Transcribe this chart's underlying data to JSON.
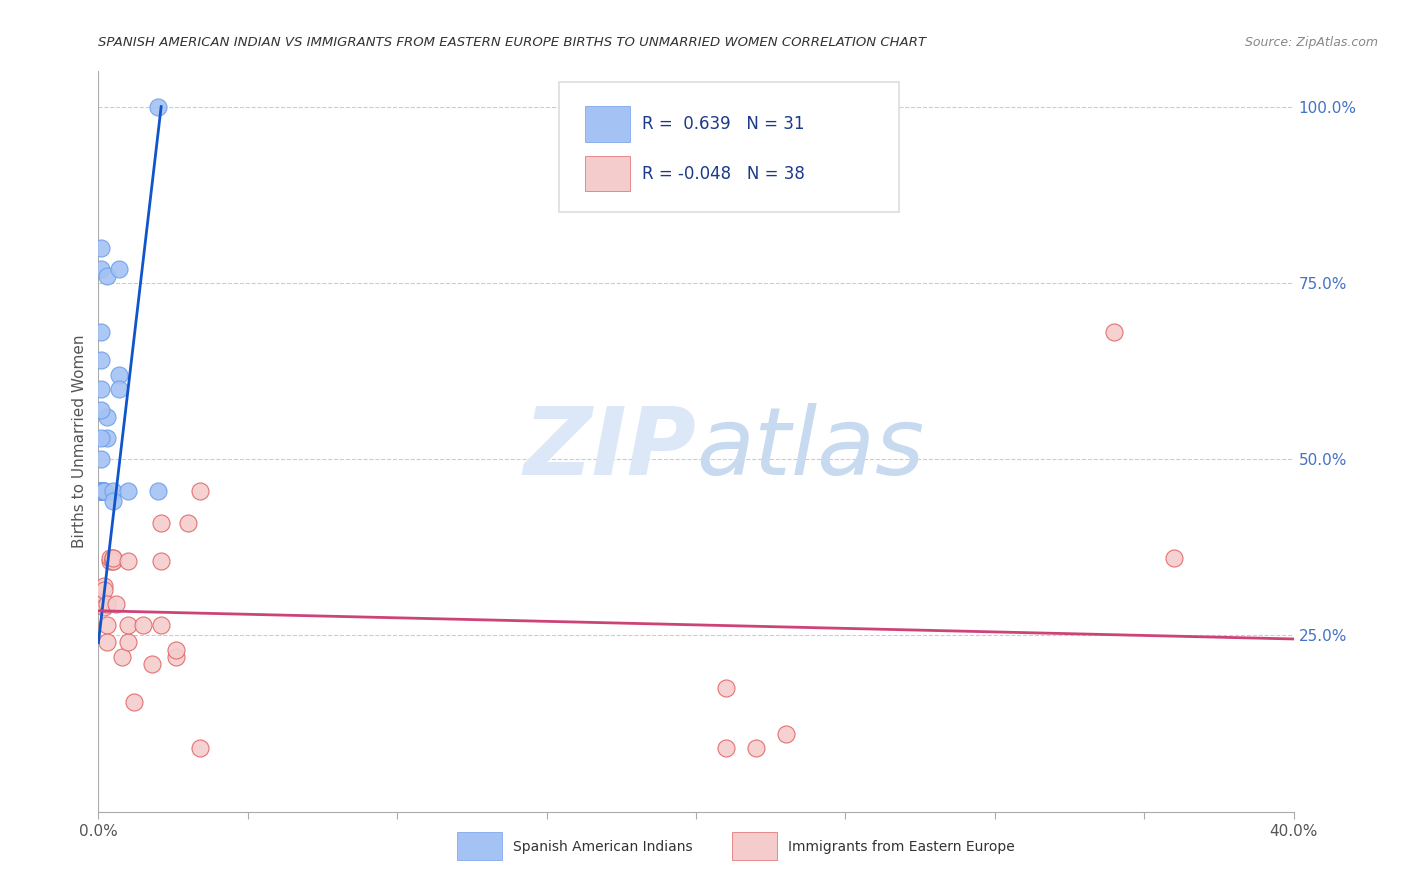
{
  "title": "SPANISH AMERICAN INDIAN VS IMMIGRANTS FROM EASTERN EUROPE BIRTHS TO UNMARRIED WOMEN CORRELATION CHART",
  "source": "Source: ZipAtlas.com",
  "ylabel": "Births to Unmarried Women",
  "blue_color": "#a4c2f4",
  "pink_color": "#f4cccc",
  "blue_edge_color": "#6d9eeb",
  "pink_edge_color": "#e06666",
  "blue_line_color": "#1155cc",
  "pink_line_color": "#cc4477",
  "watermark_zip": "ZIP",
  "watermark_atlas": "atlas",
  "blue_scatter": [
    [
      0.001,
      0.455
    ],
    [
      0.001,
      0.455
    ],
    [
      0.001,
      0.455
    ],
    [
      0.001,
      0.455
    ],
    [
      0.001,
      0.455
    ],
    [
      0.001,
      0.455
    ],
    [
      0.001,
      0.455
    ],
    [
      0.001,
      0.455
    ],
    [
      0.002,
      0.455
    ],
    [
      0.002,
      0.455
    ],
    [
      0.002,
      0.455
    ],
    [
      0.002,
      0.455
    ],
    [
      0.003,
      0.53
    ],
    [
      0.003,
      0.56
    ],
    [
      0.005,
      0.455
    ],
    [
      0.005,
      0.44
    ],
    [
      0.007,
      0.62
    ],
    [
      0.007,
      0.6
    ],
    [
      0.01,
      0.455
    ],
    [
      0.02,
      0.455
    ],
    [
      0.001,
      0.8
    ],
    [
      0.001,
      0.77
    ],
    [
      0.003,
      0.76
    ],
    [
      0.007,
      0.77
    ],
    [
      0.001,
      0.68
    ],
    [
      0.001,
      0.64
    ],
    [
      0.001,
      0.6
    ],
    [
      0.001,
      0.57
    ],
    [
      0.001,
      0.53
    ],
    [
      0.001,
      0.5
    ],
    [
      0.02,
      1.0
    ]
  ],
  "pink_scatter": [
    [
      0.001,
      0.3
    ],
    [
      0.001,
      0.295
    ],
    [
      0.001,
      0.3
    ],
    [
      0.001,
      0.295
    ],
    [
      0.002,
      0.32
    ],
    [
      0.002,
      0.315
    ],
    [
      0.002,
      0.29
    ],
    [
      0.003,
      0.295
    ],
    [
      0.003,
      0.265
    ],
    [
      0.003,
      0.24
    ],
    [
      0.004,
      0.355
    ],
    [
      0.004,
      0.36
    ],
    [
      0.005,
      0.355
    ],
    [
      0.005,
      0.36
    ],
    [
      0.005,
      0.355
    ],
    [
      0.005,
      0.36
    ],
    [
      0.006,
      0.295
    ],
    [
      0.008,
      0.22
    ],
    [
      0.01,
      0.355
    ],
    [
      0.01,
      0.24
    ],
    [
      0.01,
      0.265
    ],
    [
      0.012,
      0.155
    ],
    [
      0.015,
      0.265
    ],
    [
      0.018,
      0.21
    ],
    [
      0.021,
      0.355
    ],
    [
      0.021,
      0.265
    ],
    [
      0.021,
      0.41
    ],
    [
      0.026,
      0.22
    ],
    [
      0.026,
      0.23
    ],
    [
      0.03,
      0.41
    ],
    [
      0.034,
      0.09
    ],
    [
      0.034,
      0.455
    ],
    [
      0.21,
      0.09
    ],
    [
      0.22,
      0.09
    ],
    [
      0.21,
      0.175
    ],
    [
      0.23,
      0.11
    ],
    [
      0.34,
      0.68
    ],
    [
      0.36,
      0.36
    ]
  ],
  "xmin": 0.0,
  "xmax": 0.4,
  "ymin": 0.0,
  "ymax": 1.05,
  "ytick_vals": [
    0.25,
    0.5,
    0.75,
    1.0
  ],
  "ytick_labels": [
    "25.0%",
    "50.0%",
    "75.0%",
    "100.0%"
  ],
  "xtick_vals": [
    0.0,
    0.05,
    0.1,
    0.15,
    0.2,
    0.25,
    0.3,
    0.35,
    0.4
  ],
  "blue_trend_x": [
    0.0,
    0.021
  ],
  "blue_trend_y": [
    0.24,
    1.0
  ],
  "pink_trend_x": [
    0.0,
    0.4
  ],
  "pink_trend_y": [
    0.285,
    0.245
  ]
}
